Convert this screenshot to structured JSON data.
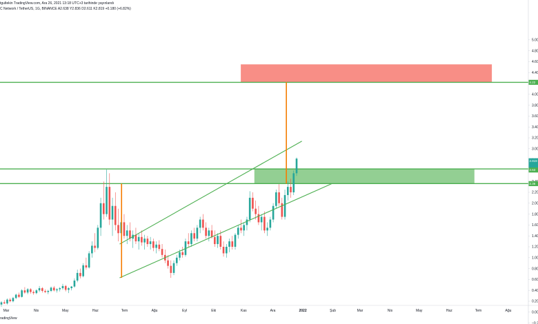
{
  "header": {
    "line1": "tgultekin TradingView.com, Ara 26, 2021 13:18 UTC+3 tarihinde yayınlandı",
    "line2": "C Network / TetherUS, 1G, BINANCE  A2.638  Y2.836  D2.611  K2.819  +0.180 (+6.82%)",
    "watermark": "radingView"
  },
  "colors": {
    "up": "#26a69a",
    "down": "#ef5350",
    "level": "#4caf50",
    "target_box": "#f88e86",
    "entry_box": "#93cf93",
    "measure": "#f57c00"
  },
  "chart_data": {
    "type": "candlestick",
    "x_ticks": [
      "Mar",
      "Nis",
      "May",
      "Haz",
      "Tem",
      "Ağu",
      "Eyl",
      "Eki",
      "Kas",
      "Ara",
      "2022",
      "Şub",
      "Mar",
      "Nis",
      "May",
      "Haz",
      "Tem",
      "Ağu"
    ],
    "y_ticks": [
      "5.00",
      "4.80",
      "4.60",
      "4.40",
      "4.20",
      "4.00",
      "3.80",
      "3.60",
      "3.40",
      "3.20",
      "3.00",
      "2.80",
      "2.60",
      "2.40",
      "2.20",
      "2.00",
      "1.80",
      "1.60",
      "1.40",
      "1.20",
      "1.00",
      "0.80",
      "0.60",
      "0.40",
      "0.20",
      "0.00",
      "−0.20"
    ],
    "ylim": [
      -0.2,
      5.1
    ],
    "horizontal_levels": [
      4.22,
      2.63,
      2.36
    ],
    "price_badges": [
      {
        "label": "4.22",
        "color": "#4caf50"
      },
      {
        "label": "2.819",
        "color": "#26a69a"
      },
      {
        "label": "2.63",
        "color": "#4caf50"
      },
      {
        "label": "2.36",
        "color": "#4caf50"
      }
    ],
    "target_box": {
      "x_start": "2021-10-29",
      "x_end": "2022-07-15",
      "y_low": 4.22,
      "y_high": 4.55
    },
    "entry_box": {
      "x_start": "2021-11-12",
      "x_end": "2022-06-27",
      "y_low": 2.36,
      "y_high": 2.63
    },
    "channel": {
      "upper": [
        [
          "2021-06-26",
          1.25
        ],
        [
          "2021-12-31",
          3.14
        ]
      ],
      "lower": [
        [
          "2021-06-26",
          0.63
        ],
        [
          "2022-01-31",
          2.36
        ]
      ]
    },
    "measure_lines": [
      {
        "x": "2021-06-28",
        "y_from": 0.63,
        "y_to": 2.36
      },
      {
        "x": "2021-12-15",
        "y_from": 2.36,
        "y_to": 4.22
      }
    ],
    "ohlc": [
      [
        0.14,
        0.2,
        0.1,
        0.18
      ],
      [
        0.18,
        0.22,
        0.15,
        0.16
      ],
      [
        0.16,
        0.25,
        0.14,
        0.23
      ],
      [
        0.23,
        0.26,
        0.18,
        0.2
      ],
      [
        0.2,
        0.28,
        0.18,
        0.26
      ],
      [
        0.26,
        0.34,
        0.24,
        0.32
      ],
      [
        0.32,
        0.36,
        0.26,
        0.28
      ],
      [
        0.28,
        0.42,
        0.27,
        0.4
      ],
      [
        0.4,
        0.46,
        0.34,
        0.36
      ],
      [
        0.36,
        0.44,
        0.33,
        0.42
      ],
      [
        0.42,
        0.44,
        0.34,
        0.37
      ],
      [
        0.37,
        0.4,
        0.32,
        0.35
      ],
      [
        0.35,
        0.42,
        0.33,
        0.4
      ],
      [
        0.4,
        0.48,
        0.37,
        0.44
      ],
      [
        0.44,
        0.46,
        0.36,
        0.39
      ],
      [
        0.39,
        0.42,
        0.35,
        0.37
      ],
      [
        0.37,
        0.41,
        0.33,
        0.39
      ],
      [
        0.39,
        0.47,
        0.37,
        0.45
      ],
      [
        0.45,
        0.48,
        0.38,
        0.4
      ],
      [
        0.4,
        0.44,
        0.36,
        0.42
      ],
      [
        0.42,
        0.46,
        0.38,
        0.44
      ],
      [
        0.44,
        0.52,
        0.41,
        0.48
      ],
      [
        0.48,
        0.5,
        0.38,
        0.41
      ],
      [
        0.41,
        0.46,
        0.35,
        0.44
      ],
      [
        0.44,
        0.48,
        0.4,
        0.47
      ],
      [
        0.47,
        0.62,
        0.45,
        0.58
      ],
      [
        0.58,
        0.78,
        0.55,
        0.72
      ],
      [
        0.72,
        0.8,
        0.62,
        0.66
      ],
      [
        0.66,
        0.9,
        0.64,
        0.86
      ],
      [
        0.86,
        1.0,
        0.78,
        0.82
      ],
      [
        0.82,
        1.12,
        0.8,
        1.08
      ],
      [
        1.08,
        1.3,
        1.0,
        1.22
      ],
      [
        1.22,
        1.45,
        1.1,
        1.18
      ],
      [
        1.18,
        1.6,
        1.15,
        1.55
      ],
      [
        1.55,
        2.1,
        1.4,
        2.0
      ],
      [
        2.0,
        2.4,
        1.7,
        1.8
      ],
      [
        1.8,
        2.62,
        1.75,
        2.3
      ],
      [
        2.3,
        2.55,
        1.6,
        1.7
      ],
      [
        1.7,
        2.1,
        1.4,
        1.95
      ],
      [
        1.95,
        2.2,
        1.5,
        1.6
      ],
      [
        1.6,
        1.9,
        1.3,
        1.45
      ],
      [
        1.45,
        1.75,
        1.2,
        1.65
      ],
      [
        1.65,
        1.8,
        1.35,
        1.4
      ],
      [
        1.4,
        1.6,
        1.25,
        1.5
      ],
      [
        1.5,
        1.65,
        1.3,
        1.35
      ],
      [
        1.35,
        1.5,
        1.18,
        1.42
      ],
      [
        1.42,
        1.55,
        1.25,
        1.3
      ],
      [
        1.3,
        1.45,
        1.15,
        1.38
      ],
      [
        1.38,
        1.5,
        1.22,
        1.28
      ],
      [
        1.28,
        1.42,
        1.15,
        1.35
      ],
      [
        1.35,
        1.4,
        1.2,
        1.25
      ],
      [
        1.25,
        1.38,
        1.15,
        1.3
      ],
      [
        1.3,
        1.35,
        1.12,
        1.18
      ],
      [
        1.18,
        1.3,
        1.08,
        1.24
      ],
      [
        1.24,
        1.32,
        1.12,
        1.16
      ],
      [
        1.16,
        1.25,
        1.0,
        1.05
      ],
      [
        1.05,
        1.15,
        0.9,
        0.95
      ],
      [
        0.95,
        1.05,
        0.8,
        0.85
      ],
      [
        0.85,
        0.95,
        0.63,
        0.72
      ],
      [
        0.72,
        0.95,
        0.68,
        0.9
      ],
      [
        0.9,
        1.05,
        0.85,
        1.0
      ],
      [
        1.0,
        1.15,
        0.95,
        1.1
      ],
      [
        1.1,
        1.2,
        1.0,
        1.05
      ],
      [
        1.05,
        1.35,
        1.02,
        1.3
      ],
      [
        1.3,
        1.45,
        1.2,
        1.25
      ],
      [
        1.25,
        1.5,
        1.2,
        1.45
      ],
      [
        1.45,
        1.55,
        1.3,
        1.35
      ],
      [
        1.35,
        1.6,
        1.3,
        1.55
      ],
      [
        1.55,
        1.75,
        1.45,
        1.7
      ],
      [
        1.7,
        1.8,
        1.5,
        1.55
      ],
      [
        1.55,
        1.65,
        1.35,
        1.4
      ],
      [
        1.4,
        1.55,
        1.3,
        1.5
      ],
      [
        1.5,
        1.6,
        1.35,
        1.38
      ],
      [
        1.38,
        1.5,
        1.2,
        1.25
      ],
      [
        1.25,
        1.45,
        1.18,
        1.4
      ],
      [
        1.4,
        1.5,
        1.15,
        1.2
      ],
      [
        1.2,
        1.3,
        1.02,
        1.08
      ],
      [
        1.08,
        1.25,
        1.0,
        1.2
      ],
      [
        1.2,
        1.35,
        1.1,
        1.3
      ],
      [
        1.3,
        1.4,
        1.15,
        1.2
      ],
      [
        1.2,
        1.45,
        1.15,
        1.42
      ],
      [
        1.42,
        1.6,
        1.35,
        1.55
      ],
      [
        1.55,
        1.7,
        1.45,
        1.5
      ],
      [
        1.5,
        1.65,
        1.4,
        1.6
      ],
      [
        1.6,
        1.75,
        1.5,
        1.7
      ],
      [
        1.7,
        2.22,
        1.65,
        2.1
      ],
      [
        2.1,
        2.2,
        1.85,
        1.9
      ],
      [
        1.9,
        2.05,
        1.7,
        1.8
      ],
      [
        1.8,
        1.95,
        1.6,
        1.65
      ],
      [
        1.65,
        1.8,
        1.5,
        1.75
      ],
      [
        1.75,
        1.85,
        1.45,
        1.5
      ],
      [
        1.5,
        1.65,
        1.4,
        1.55
      ],
      [
        1.55,
        1.75,
        1.5,
        1.7
      ],
      [
        1.7,
        2.0,
        1.65,
        1.95
      ],
      [
        1.95,
        2.25,
        1.9,
        2.2
      ],
      [
        2.2,
        2.35,
        1.95,
        2.0
      ],
      [
        2.0,
        2.1,
        1.7,
        1.75
      ],
      [
        1.75,
        2.25,
        1.7,
        2.15
      ],
      [
        2.15,
        2.4,
        2.05,
        2.3
      ],
      [
        2.3,
        2.45,
        2.1,
        2.2
      ],
      [
        2.2,
        2.6,
        2.15,
        2.55
      ],
      [
        2.55,
        2.84,
        2.5,
        2.819
      ]
    ]
  }
}
